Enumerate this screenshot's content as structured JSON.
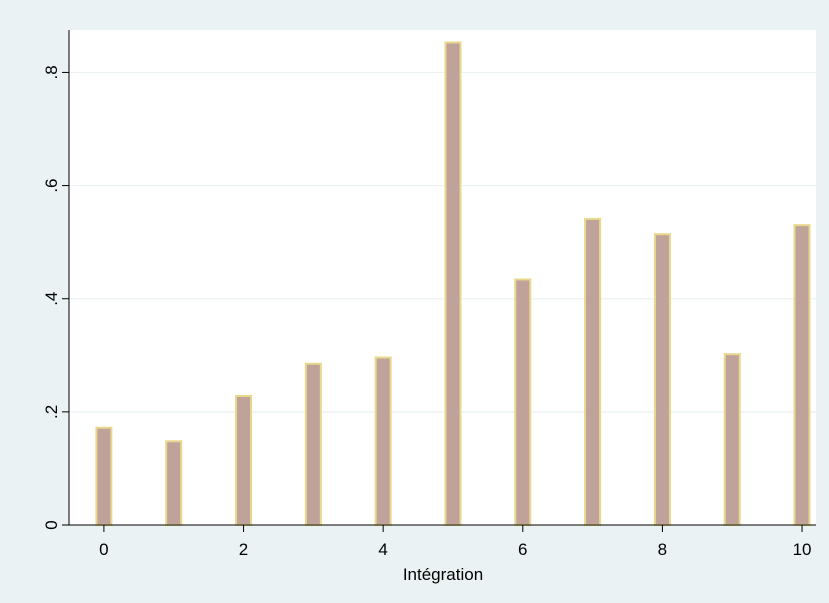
{
  "chart_data": {
    "type": "bar",
    "xlabel": "Intégration",
    "ylabel": "",
    "x": [
      0,
      1,
      2,
      3,
      4,
      5,
      6,
      7,
      8,
      9,
      10
    ],
    "values": [
      0.172,
      0.148,
      0.228,
      0.285,
      0.296,
      0.853,
      0.434,
      0.541,
      0.514,
      0.302,
      0.53
    ],
    "xlim": [
      -0.5,
      10.2
    ],
    "ylim": [
      0,
      0.875
    ],
    "xticks": [
      0,
      2,
      4,
      6,
      8,
      10
    ],
    "xtick_labels": [
      "0",
      "2",
      "4",
      "6",
      "8",
      "10"
    ],
    "yticks": [
      0,
      0.2,
      0.4,
      0.6,
      0.8
    ],
    "ytick_labels": [
      "0",
      ".2",
      ".4",
      ".6",
      ".8"
    ],
    "grid": "horizontal",
    "legend": "none",
    "colors": {
      "outer_background": "#eaf2f3",
      "plot_background": "#ffffff",
      "bar_fill": "#bfa39b",
      "bar_outline": "#e8d88c",
      "grid": "#eaf2f3",
      "axis": "#000000"
    }
  }
}
